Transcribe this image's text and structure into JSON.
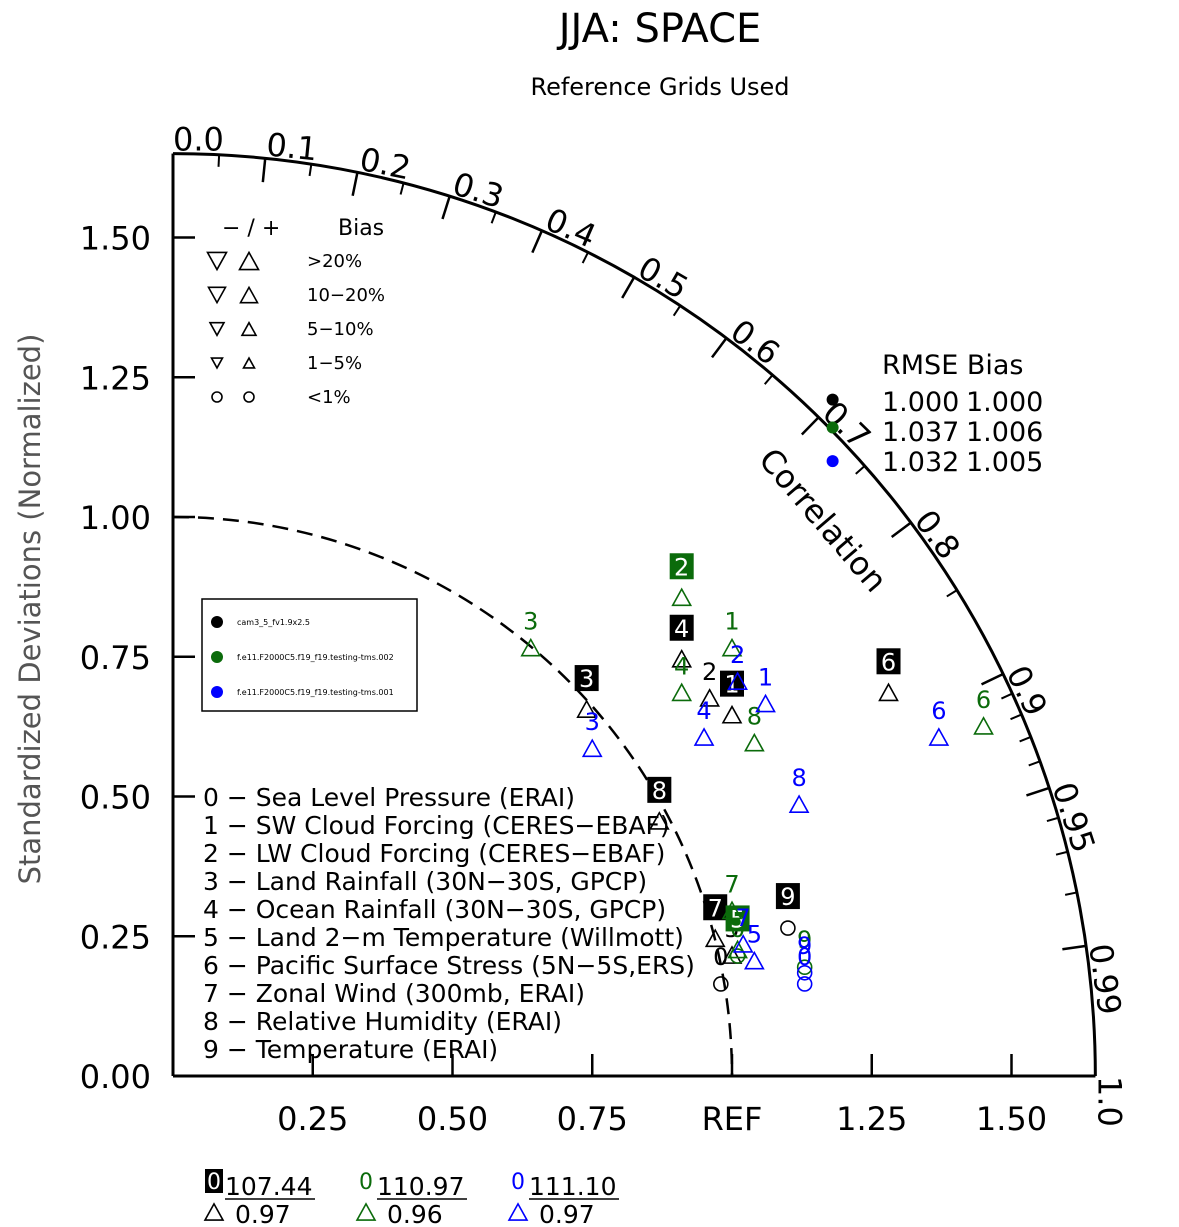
{
  "chart_data": {
    "type": "scatter",
    "title": "JJA: SPACE",
    "subtitle": "Reference Grids Used",
    "ylabel": "Standardized Deviations (Normalized)",
    "arc_label": "Correlation",
    "ref_label": "REF",
    "x_ticks": [
      "0.25",
      "0.50",
      "0.75",
      "1.25",
      "1.50"
    ],
    "x_tick_values": [
      0.25,
      0.5,
      0.75,
      1.25,
      1.5
    ],
    "y_ticks": [
      "0.00",
      "0.25",
      "0.50",
      "0.75",
      "1.00",
      "1.25",
      "1.50"
    ],
    "y_tick_values": [
      0,
      0.25,
      0.5,
      0.75,
      1.0,
      1.25,
      1.5
    ],
    "corr_labels": [
      "0.0",
      "0.1",
      "0.2",
      "0.3",
      "0.4",
      "0.5",
      "0.6",
      "0.7",
      "0.8",
      "0.9",
      "0.95",
      "0.99",
      "1.0"
    ],
    "corr_values": [
      0,
      0.1,
      0.2,
      0.3,
      0.4,
      0.5,
      0.6,
      0.7,
      0.8,
      0.9,
      0.95,
      0.99,
      1.0
    ],
    "axis_max": 1.65,
    "ref_std": 1.0,
    "bias_legend": {
      "header_sign": "− / +",
      "header_bias": "Bias",
      "rows": [
        "&gt;20%",
        "10−20%",
        "5−10%",
        "1−5%",
        "&lt;1%"
      ]
    },
    "rmse_legend": {
      "header": "RMSE  Bias",
      "rows": [
        {
          "rmse": "1.000",
          "bias": "1.000",
          "color": "#000000"
        },
        {
          "rmse": "1.037",
          "bias": "1.006",
          "color": "#0b6b0b"
        },
        {
          "rmse": "1.032",
          "bias": "1.005",
          "color": "#0000ff"
        }
      ]
    },
    "case_legend": [
      {
        "name": "cam3_5_fv1.9x2.5",
        "color": "#000000"
      },
      {
        "name": "f.e11.F2000C5.f19_f19.testing-tms.002",
        "color": "#0b6b0b"
      },
      {
        "name": "f.e11.F2000C5.f19_f19.testing-tms.001",
        "color": "#0000ff"
      }
    ],
    "variables": [
      "0 − Sea Level Pressure (ERAI)",
      "1 − SW Cloud Forcing (CERES−EBAF)",
      "2 − LW Cloud Forcing (CERES−EBAF)",
      "3 − Land Rainfall (30N−30S, GPCP)",
      "4 − Ocean Rainfall (30N−30S, GPCP)",
      "5 − Land 2−m Temperature (Willmott)",
      "6 − Pacific Surface Stress (5N−5S,ERS)",
      "7 − Zonal Wind (300mb, ERAI)",
      "8 − Relative Humidity (ERAI)",
      "9 − Temperature (ERAI)"
    ],
    "series": [
      {
        "name": "cam3_5_fv1.9x2.5",
        "color": "#000000",
        "points": [
          {
            "id": "0",
            "x": 0.98,
            "y": 0.17,
            "marker": "circle",
            "boxed": false
          },
          {
            "id": "1",
            "x": 1.0,
            "y": 0.65,
            "marker": "up",
            "boxed": true
          },
          {
            "id": "2",
            "x": 0.96,
            "y": 0.68,
            "marker": "up",
            "boxed": false
          },
          {
            "id": "3",
            "x": 0.74,
            "y": 0.66,
            "marker": "up",
            "boxed": true
          },
          {
            "id": "4",
            "x": 0.91,
            "y": 0.75,
            "marker": "up",
            "boxed": true
          },
          {
            "id": "5",
            "x": 1.0,
            "y": 0.22,
            "marker": "up",
            "boxed": false
          },
          {
            "id": "6",
            "x": 1.28,
            "y": 0.69,
            "marker": "up",
            "boxed": true
          },
          {
            "id": "7",
            "x": 0.97,
            "y": 0.25,
            "marker": "up",
            "boxed": true
          },
          {
            "id": "8",
            "x": 0.87,
            "y": 0.46,
            "marker": "up",
            "boxed": true
          },
          {
            "id": "9",
            "x": 1.1,
            "y": 0.27,
            "marker": "circle",
            "boxed": true
          }
        ]
      },
      {
        "name": "f.e11.F2000C5.f19_f19.testing-tms.002",
        "color": "#0b6b0b",
        "points": [
          {
            "id": "0",
            "x": 1.01,
            "y": 0.22,
            "marker": "circle",
            "boxed": false
          },
          {
            "id": "1",
            "x": 1.0,
            "y": 0.77,
            "marker": "up",
            "boxed": false
          },
          {
            "id": "2",
            "x": 0.91,
            "y": 0.86,
            "marker": "up",
            "boxed": true
          },
          {
            "id": "3",
            "x": 0.64,
            "y": 0.77,
            "marker": "up",
            "boxed": false
          },
          {
            "id": "4",
            "x": 0.91,
            "y": 0.69,
            "marker": "up",
            "boxed": false
          },
          {
            "id": "5",
            "x": 1.01,
            "y": 0.23,
            "marker": "up",
            "boxed": true
          },
          {
            "id": "6",
            "x": 1.45,
            "y": 0.63,
            "marker": "up",
            "boxed": false
          },
          {
            "id": "7",
            "x": 1.0,
            "y": 0.3,
            "marker": "up",
            "boxed": false
          },
          {
            "id": "8",
            "x": 1.04,
            "y": 0.6,
            "marker": "up",
            "boxed": false
          },
          {
            "id": "9",
            "x": 1.13,
            "y": 0.2,
            "marker": "circle",
            "boxed": false
          }
        ]
      },
      {
        "name": "f.e11.F2000C5.f19_f19.testing-tms.001",
        "color": "#0000ff",
        "points": [
          {
            "id": "0",
            "x": 1.13,
            "y": 0.17,
            "marker": "circle",
            "boxed": false
          },
          {
            "id": "1",
            "x": 1.06,
            "y": 0.67,
            "marker": "up",
            "boxed": false
          },
          {
            "id": "2",
            "x": 1.01,
            "y": 0.71,
            "marker": "up",
            "boxed": false
          },
          {
            "id": "3",
            "x": 0.75,
            "y": 0.59,
            "marker": "up",
            "boxed": false
          },
          {
            "id": "4",
            "x": 0.95,
            "y": 0.61,
            "marker": "up",
            "boxed": false
          },
          {
            "id": "5",
            "x": 1.04,
            "y": 0.21,
            "marker": "up",
            "boxed": false
          },
          {
            "id": "6",
            "x": 1.37,
            "y": 0.61,
            "marker": "up",
            "boxed": false
          },
          {
            "id": "7",
            "x": 1.02,
            "y": 0.24,
            "marker": "up",
            "boxed": false
          },
          {
            "id": "8",
            "x": 1.12,
            "y": 0.49,
            "marker": "up",
            "boxed": false
          },
          {
            "id": "9",
            "x": 1.13,
            "y": 0.19,
            "marker": "circle",
            "boxed": false
          }
        ]
      }
    ],
    "summary": [
      {
        "id": "0",
        "rmse": "107.44",
        "corr": "0.97",
        "color": "#000000"
      },
      {
        "id": "0",
        "rmse": "110.97",
        "corr": "0.96",
        "color": "#0b6b0b"
      },
      {
        "id": "0",
        "rmse": "111.10",
        "corr": "0.97",
        "color": "#0000ff"
      }
    ],
    "rmse_dots": [
      {
        "x": 1.18,
        "y": 1.21,
        "color": "#000000"
      },
      {
        "x": 1.18,
        "y": 1.16,
        "color": "#0b6b0b"
      },
      {
        "x": 1.18,
        "y": 1.1,
        "color": "#0000ff"
      }
    ]
  }
}
